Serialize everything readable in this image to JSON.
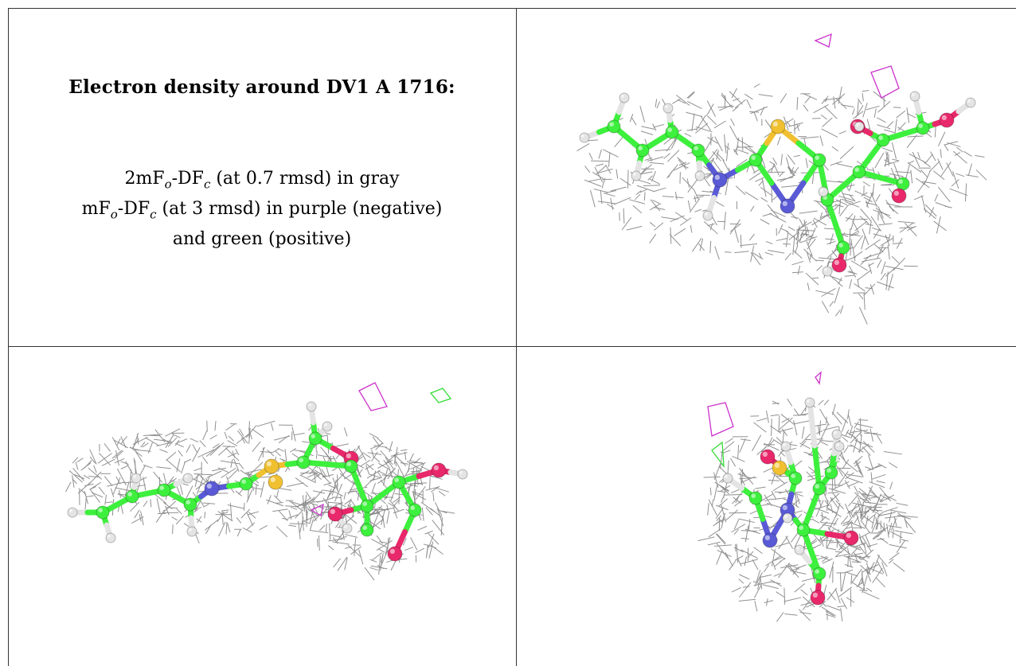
{
  "caption": {
    "title": "Electron density around DV1 A 1716:",
    "line1": {
      "pre": "2mF",
      "sub1": "o",
      "mid": "-DF",
      "sub2": "c",
      "post": " (at 0.7 rmsd) in gray"
    },
    "line2": {
      "pre": "mF",
      "sub1": "o",
      "mid": "-DF",
      "sub2": "c",
      "post": " (at 3 rmsd) in purple (negative)"
    },
    "line3": "and green (positive)"
  },
  "colors": {
    "carbon": "#3df03d",
    "nitrogen": "#5a5ad6",
    "oxygen": "#e8286a",
    "sulfur": "#f0c030",
    "hydrogen": "#e4e4e4",
    "mesh_gray": "#7d7d7d",
    "negative_density": "#cc33cc",
    "positive_density": "#33dd33"
  },
  "panels": [
    {
      "name": "view-top-right"
    },
    {
      "name": "view-bottom-left"
    },
    {
      "name": "view-bottom-right"
    }
  ]
}
